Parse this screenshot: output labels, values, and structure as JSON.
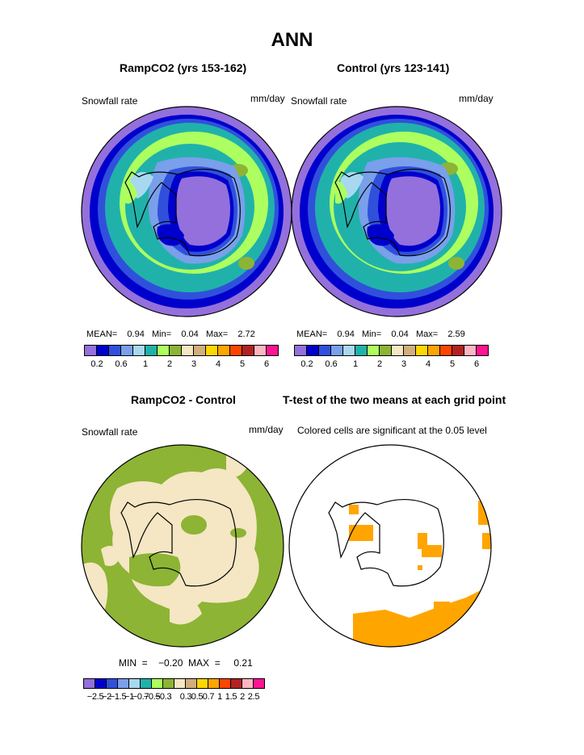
{
  "title": "ANN",
  "panels": {
    "ramp": {
      "title": "RampCO2 (yrs 153-162)",
      "variable": "Snowfall rate",
      "units": "mm/day",
      "stats": "MEAN=    0.94   Min=    0.04   Max=    2.72"
    },
    "control": {
      "title": "Control (yrs 123-141)",
      "variable": "Snowfall rate",
      "units": "mm/day",
      "stats": "MEAN=    0.94   Min=    0.04   Max=    2.59"
    },
    "diff": {
      "title": "RampCO2 - Control",
      "variable": "Snowfall rate",
      "units": "mm/day",
      "stats": "MIN  =    −0.20  MAX  =     0.21"
    },
    "ttest": {
      "title": "T-test of the two means at each grid point",
      "subtitle": "Colored cells are significant at the 0.05 level"
    }
  },
  "colorbar_field": {
    "colors": [
      "#9370DB",
      "#0000CD",
      "#3050DC",
      "#7A9FEB",
      "#A8D8F0",
      "#20B2AA",
      "#ADFF5F",
      "#8DB434",
      "#F5E6C4",
      "#D2AE7D",
      "#FFD700",
      "#FFA500",
      "#FF4500",
      "#B22222",
      "#FFB6C1",
      "#FF1493"
    ],
    "labels": [
      "0.2",
      "0.6",
      "1",
      "2",
      "3",
      "4",
      "5",
      "6"
    ]
  },
  "colorbar_diff": {
    "colors": [
      "#9370DB",
      "#0000CD",
      "#3050DC",
      "#7A9FEB",
      "#A8D8F0",
      "#20B2AA",
      "#ADFF5F",
      "#8DB434",
      "#F5E6C4",
      "#D2AE7D",
      "#FFD700",
      "#FFA500",
      "#FF4500",
      "#B22222",
      "#FFB6C1",
      "#FF1493"
    ],
    "labels": [
      "−2.5",
      "−2",
      "−1.5",
      "−1",
      "−0.7",
      "−0.5",
      "−0.3",
      "0.3",
      "0.5",
      "0.7",
      "1",
      "1.5",
      "2",
      "2.5"
    ]
  },
  "map_colors": {
    "outer_ocean": "#9370DB",
    "deep_blue": "#0000CD",
    "mid_blue": "#3050DC",
    "light_blue": "#7A9FEB",
    "teal": "#20B2AA",
    "light_green": "#ADFF5F",
    "olive": "#8DB434",
    "interior": "#9370DB",
    "diff_positive": "#8DB434",
    "diff_negative": "#F5E6C4",
    "significant": "#FFA500"
  }
}
